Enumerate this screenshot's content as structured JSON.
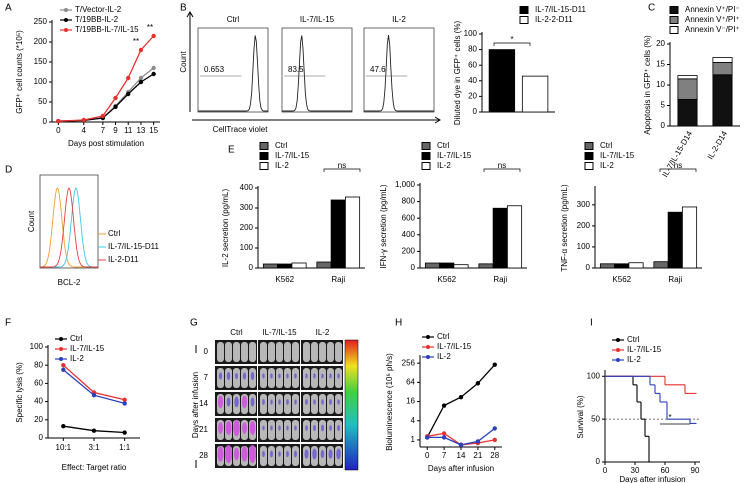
{
  "chart_data": [
    {
      "type": "line",
      "label": "A",
      "ylabel": "GFP⁺ cell counts (*10⁵)",
      "xlabel": "Days post stimulation",
      "x": [
        0,
        4,
        7,
        9,
        11,
        13,
        15
      ],
      "xlim": [
        -1,
        16
      ],
      "xticks": [
        0,
        4,
        7,
        9,
        11,
        13,
        15
      ],
      "ylim": [
        0,
        250
      ],
      "yticks": [
        0,
        50,
        100,
        150,
        200,
        250
      ],
      "series": [
        {
          "name": "T/Vector-IL-2",
          "color": "#8c8c8c",
          "values": [
            2,
            4,
            10,
            40,
            75,
            110,
            135
          ]
        },
        {
          "name": "T/19BB-IL-2",
          "color": "#000000",
          "values": [
            2,
            4,
            10,
            38,
            70,
            100,
            120
          ]
        },
        {
          "name": "T/19BB-IL-7/IL-15",
          "color": "#e8312f",
          "values": [
            2,
            5,
            15,
            60,
            110,
            180,
            215
          ]
        }
      ],
      "annotations": [
        "**",
        "**"
      ]
    },
    {
      "type": "flow",
      "label": "B",
      "ylabel": "Count",
      "xlabel": "CellTrace violet",
      "panels": [
        {
          "title": "Ctrl",
          "gate": 0.653
        },
        {
          "title": "IL-7/IL-15",
          "gate": 83.5
        },
        {
          "title": "IL-2",
          "gate": 47.6
        }
      ]
    },
    {
      "type": "bar",
      "ylabel": "Diluted dye in GFP⁺ cells (%)",
      "ylim": [
        0,
        100
      ],
      "yticks": [
        0,
        20,
        40,
        60,
        80,
        100
      ],
      "series": [
        {
          "name": "IL-7/IL-15-D11",
          "color": "#000000",
          "values": [
            80
          ]
        },
        {
          "name": "IL-2-2-D11",
          "color": "#ffffff",
          "values": [
            46
          ]
        }
      ],
      "annotations": [
        "*"
      ]
    },
    {
      "type": "bar",
      "stacked": true,
      "label": "C",
      "ylabel": "Apoptosis in GFP⁺ cells (%)",
      "categories": [
        "IL-7/IL-15-D14",
        "IL-2-D14"
      ],
      "ylim": [
        0,
        20
      ],
      "yticks": [
        0,
        5,
        10,
        15,
        20
      ],
      "series": [
        {
          "name": "Annexin V⁺/PI⁻",
          "color": "#111111",
          "values": [
            6.5,
            12.5
          ]
        },
        {
          "name": "Annexin V⁺/PI⁺",
          "color": "#808080",
          "values": [
            5,
            3
          ]
        },
        {
          "name": "Annexin V⁻/PI⁺",
          "color": "#ffffff",
          "values": [
            0.8,
            1.2
          ]
        }
      ]
    },
    {
      "type": "flow-overlay",
      "label": "D",
      "ylabel": "Count",
      "xlabel": "BCL-2",
      "series": [
        {
          "name": "Ctrl",
          "color": "#f0a030"
        },
        {
          "name": "IL-7/IL-15-D11",
          "color": "#3cc8e8"
        },
        {
          "name": "IL-2-D11",
          "color": "#e84040"
        }
      ]
    },
    {
      "type": "bar",
      "label": "E",
      "ylabel": "IL-2 secretion (pg/mL)",
      "categories": [
        "K562",
        "Raji"
      ],
      "ylim": [
        0,
        400
      ],
      "yticks": [
        0,
        100,
        200,
        300,
        400
      ],
      "series": [
        {
          "name": "Ctrl",
          "color": "#666666",
          "values": [
            20,
            30
          ]
        },
        {
          "name": "IL-7/IL-15",
          "color": "#000000",
          "values": [
            20,
            340
          ]
        },
        {
          "name": "IL-2",
          "color": "#ffffff",
          "values": [
            25,
            355
          ]
        }
      ],
      "annotations": [
        "ns"
      ]
    },
    {
      "type": "bar",
      "ylabel": "IFN-γ secretion (pg/mL)",
      "categories": [
        "K562",
        "Raji"
      ],
      "ylim": [
        0,
        1000
      ],
      "yticks": [
        0,
        200,
        400,
        600,
        800,
        {
          "value": 1000,
          "label": "1,000"
        }
      ],
      "series": [
        {
          "name": "Ctrl",
          "color": "#666666",
          "values": [
            60,
            50
          ]
        },
        {
          "name": "IL-7/IL-15",
          "color": "#000000",
          "values": [
            60,
            720
          ]
        },
        {
          "name": "IL-2",
          "color": "#ffffff",
          "values": [
            40,
            750
          ]
        }
      ],
      "annotations": [
        "ns"
      ]
    },
    {
      "type": "bar",
      "ylabel": "TNF-α secretion (pg/mL)",
      "categories": [
        "K562",
        "Raji"
      ],
      "ylim": [
        0,
        380
      ],
      "yticks": [
        0,
        100,
        200,
        300
      ],
      "series": [
        {
          "name": "Ctrl",
          "color": "#666666",
          "values": [
            20,
            30
          ]
        },
        {
          "name": "IL-7/IL-15",
          "color": "#000000",
          "values": [
            20,
            265
          ]
        },
        {
          "name": "IL-2",
          "color": "#ffffff",
          "values": [
            25,
            290
          ]
        }
      ],
      "annotations": [
        "ns"
      ]
    },
    {
      "type": "line",
      "label": "F",
      "ylabel": "Specific lysis (%)",
      "xlabel": "Effect: Target ratio",
      "categories": [
        "10:1",
        "3:1",
        "1:1"
      ],
      "ylim": [
        0,
        100
      ],
      "yticks": [
        0,
        20,
        40,
        60,
        80,
        100
      ],
      "series": [
        {
          "name": "Ctrl",
          "color": "#000000",
          "values": [
            13,
            8,
            6
          ]
        },
        {
          "name": "IL-7/IL-15",
          "color": "#e8312f",
          "values": [
            80,
            50,
            42
          ]
        },
        {
          "name": "IL-2",
          "color": "#2b3fbf",
          "values": [
            75,
            47,
            38
          ]
        }
      ]
    },
    {
      "type": "image-grid",
      "label": "G",
      "ylabel": "Days after infusion",
      "columns": [
        "Ctrl",
        "IL-7/IL-15",
        "IL-2"
      ],
      "rows": [
        0,
        7,
        14,
        21,
        28
      ]
    },
    {
      "type": "line",
      "label": "H",
      "log": true,
      "ylabel": "Bioluminescence (10⁶ ph/s)",
      "xlabel": "Days after infusion",
      "x": [
        0,
        7,
        14,
        21,
        28
      ],
      "xlim": [
        -3,
        31
      ],
      "xticks": [
        0,
        7,
        14,
        21,
        28
      ],
      "ylim": [
        0.6,
        400
      ],
      "yticks": [
        1,
        4,
        16,
        64,
        256
      ],
      "series": [
        {
          "name": "Ctrl",
          "color": "#000000",
          "values": [
            1.2,
            12,
            22,
            60,
            230
          ]
        },
        {
          "name": "IL-7/IL-15",
          "color": "#e8312f",
          "values": [
            1.3,
            1.6,
            0.7,
            0.8,
            1.0
          ]
        },
        {
          "name": "IL-2",
          "color": "#2b3fbf",
          "values": [
            1.2,
            1.2,
            0.7,
            0.9,
            2.3
          ]
        }
      ]
    },
    {
      "type": "step",
      "label": "I",
      "ylabel": "Survival (%)",
      "xlabel": "Days after infusion",
      "xlim": [
        0,
        95
      ],
      "xticks": [
        0,
        30,
        60,
        90
      ],
      "ylim": [
        0,
        105
      ],
      "yticks": [
        0,
        50,
        100
      ],
      "reference_line": 50,
      "series": [
        {
          "name": "Ctrl",
          "color": "#000000",
          "x": [
            0,
            28,
            32,
            36,
            40,
            44
          ],
          "values": [
            100,
            90,
            70,
            50,
            30,
            0
          ]
        },
        {
          "name": "IL-7/IL-15",
          "color": "#e8312f",
          "x": [
            0,
            60,
            80,
            90
          ],
          "values": [
            100,
            90,
            80,
            80
          ]
        },
        {
          "name": "IL-2",
          "color": "#2b3fbf",
          "x": [
            0,
            45,
            50,
            55,
            62,
            85,
            90
          ],
          "values": [
            100,
            90,
            80,
            70,
            50,
            45,
            45
          ]
        }
      ],
      "annotations": [
        "*"
      ]
    }
  ]
}
